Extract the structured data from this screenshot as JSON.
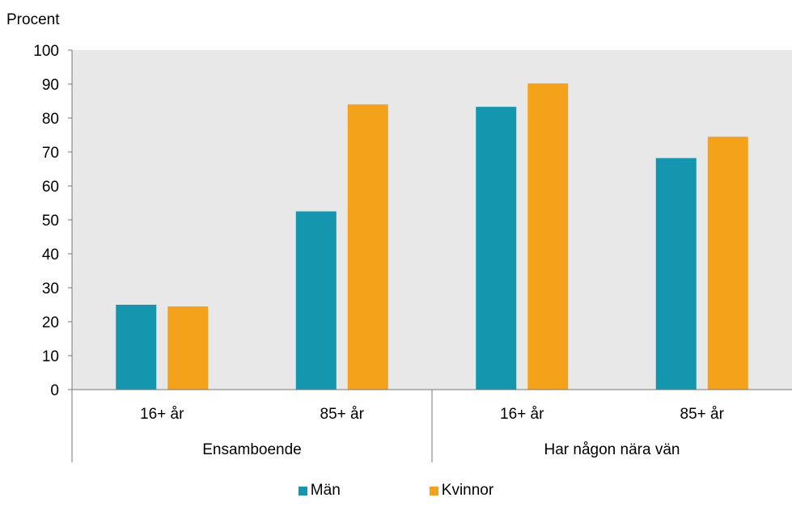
{
  "chart_data": {
    "type": "bar",
    "ylabel": "Procent",
    "ylim": [
      0,
      100
    ],
    "yticks": [
      0,
      10,
      20,
      30,
      40,
      50,
      60,
      70,
      80,
      90,
      100
    ],
    "grid": false,
    "legend_position": "bottom",
    "groups": [
      {
        "label": "Ensamboende",
        "categories": [
          "16+ år",
          "85+ år"
        ]
      },
      {
        "label": "Har någon nära vän",
        "categories": [
          "16+ år",
          "85+ år"
        ]
      }
    ],
    "categories": [
      "16+ år",
      "85+ år",
      "16+ år",
      "85+ år"
    ],
    "series": [
      {
        "name": "Män",
        "color": "#1496ae",
        "values": [
          25,
          52.5,
          83.3,
          68.2
        ]
      },
      {
        "name": "Kvinnor",
        "color": "#f5a21b",
        "values": [
          24.5,
          84,
          90.2,
          74.5
        ]
      }
    ],
    "plot_background": "#e8e8e8"
  }
}
